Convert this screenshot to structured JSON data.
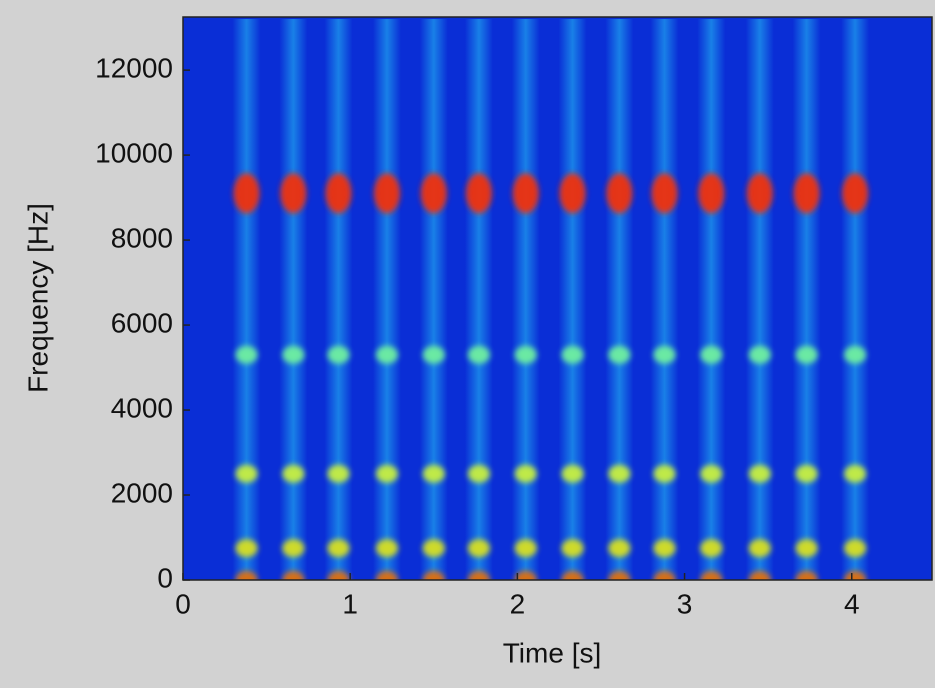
{
  "chart_data": {
    "type": "spectrogram",
    "xlabel": "Time [s]",
    "ylabel": "Frequency [Hz]",
    "xlim": [
      0,
      4.48
    ],
    "ylim": [
      0,
      13250
    ],
    "xticks": [
      0,
      1,
      2,
      3,
      4
    ],
    "yticks": [
      0,
      2000,
      4000,
      6000,
      8000,
      10000,
      12000
    ],
    "pulse_times": [
      0.38,
      0.66,
      0.93,
      1.22,
      1.5,
      1.77,
      2.05,
      2.33,
      2.61,
      2.88,
      3.16,
      3.45,
      3.73,
      4.02
    ],
    "harmonics": [
      0,
      750,
      2500,
      5300,
      9100
    ],
    "harmonic_colors": [
      "#e07010",
      "#d8e020",
      "#c8f040",
      "#70f0a0",
      "#f03010"
    ],
    "background_color": "#0a2ed6",
    "pulse_color": "#20a8f0"
  }
}
